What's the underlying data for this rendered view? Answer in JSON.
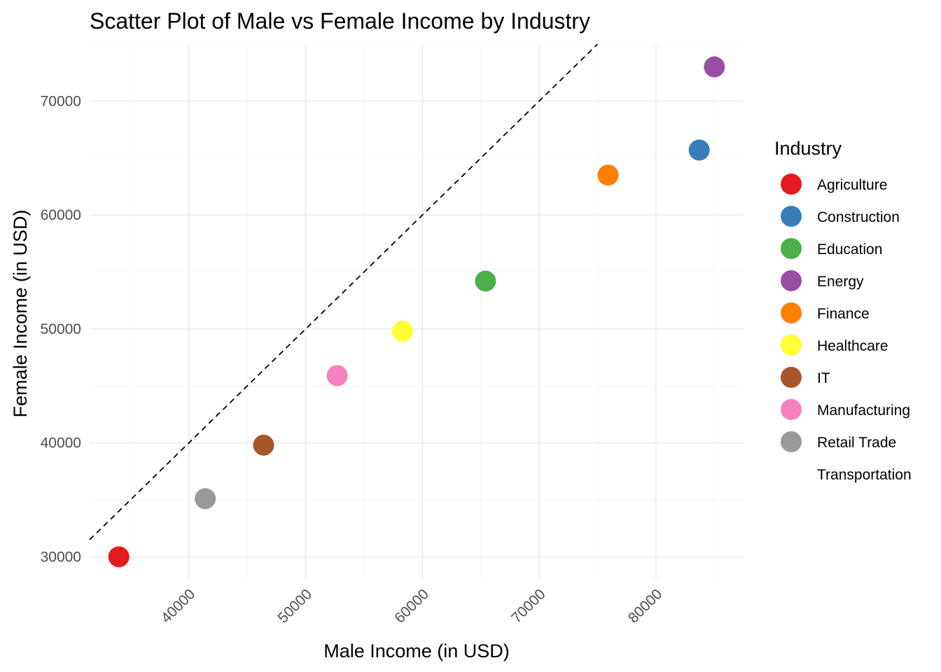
{
  "chart_data": {
    "type": "scatter",
    "title": "Scatter Plot of Male vs Female Income by Industry",
    "xlabel": "Male Income (in USD)",
    "ylabel": "Female Income (in USD)",
    "xlim": [
      31500,
      87500
    ],
    "ylim": [
      28000,
      75000
    ],
    "x_ticks": [
      40000,
      50000,
      60000,
      70000,
      80000
    ],
    "x_tick_labels": [
      "40000",
      "50000",
      "60000",
      "70000",
      "80000"
    ],
    "y_ticks": [
      30000,
      40000,
      50000,
      60000,
      70000
    ],
    "y_tick_labels": [
      "30000",
      "40000",
      "50000",
      "60000",
      "70000"
    ],
    "grid": true,
    "reference_line": {
      "type": "identity",
      "slope": 1,
      "intercept": 0,
      "style": "dashed"
    },
    "legend": {
      "title": "Industry",
      "position": "right",
      "entries": [
        {
          "label": "Agriculture",
          "color": "#E41A1C"
        },
        {
          "label": "Construction",
          "color": "#377EB8"
        },
        {
          "label": "Education",
          "color": "#4DAF4A"
        },
        {
          "label": "Energy",
          "color": "#984EA3"
        },
        {
          "label": "Finance",
          "color": "#FF7F00"
        },
        {
          "label": "Healthcare",
          "color": "#FFFF33"
        },
        {
          "label": "IT",
          "color": "#A65628"
        },
        {
          "label": "Manufacturing",
          "color": "#F781BF"
        },
        {
          "label": "Retail Trade",
          "color": "#999999"
        },
        {
          "label": "Transportation",
          "color": ""
        }
      ]
    },
    "points": [
      {
        "industry": "Agriculture",
        "x": 34000,
        "y": 30000,
        "color": "#E41A1C"
      },
      {
        "industry": "Retail Trade",
        "x": 41400,
        "y": 35100,
        "color": "#999999"
      },
      {
        "industry": "IT",
        "x": 46400,
        "y": 39800,
        "color": "#A65628"
      },
      {
        "industry": "Manufacturing",
        "x": 52700,
        "y": 45900,
        "color": "#F781BF"
      },
      {
        "industry": "Healthcare",
        "x": 58300,
        "y": 49800,
        "color": "#FFFF33"
      },
      {
        "industry": "Education",
        "x": 65400,
        "y": 54200,
        "color": "#4DAF4A"
      },
      {
        "industry": "Finance",
        "x": 75900,
        "y": 63500,
        "color": "#FF7F00"
      },
      {
        "industry": "Construction",
        "x": 83700,
        "y": 65700,
        "color": "#377EB8"
      },
      {
        "industry": "Energy",
        "x": 85000,
        "y": 73000,
        "color": "#984EA3"
      }
    ]
  }
}
